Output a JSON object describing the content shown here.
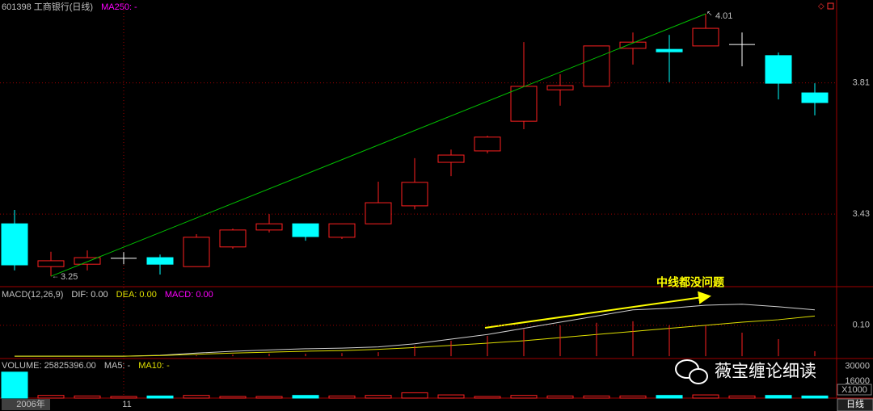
{
  "chart_data": [
    {
      "type": "candlestick",
      "title": "601398 工商银行(日线)",
      "indicator": "MA250: -",
      "indicator_color": "#ff00ff",
      "categories": [
        "2006年",
        null,
        null,
        "11",
        null,
        null,
        null,
        null,
        null,
        null,
        null,
        null,
        null,
        null,
        null,
        null,
        null,
        null,
        null,
        null,
        null,
        null,
        null
      ],
      "open": [
        3.402,
        3.278,
        3.285,
        3.302,
        3.304,
        3.278,
        3.335,
        3.384,
        3.402,
        3.363,
        3.402,
        3.454,
        3.58,
        3.613,
        3.699,
        3.79,
        3.8,
        3.91,
        3.907,
        3.917,
        3.921,
        3.889,
        3.781
      ],
      "high": [
        3.442,
        3.321,
        3.325,
        3.32,
        3.313,
        3.372,
        3.388,
        3.43,
        3.402,
        3.402,
        3.524,
        3.592,
        3.617,
        3.657,
        3.928,
        3.835,
        3.917,
        3.956,
        3.949,
        4.01,
        3.956,
        3.898,
        3.809
      ],
      "low": [
        3.267,
        3.25,
        3.267,
        3.285,
        3.255,
        3.278,
        3.33,
        3.377,
        3.353,
        3.358,
        3.402,
        3.444,
        3.54,
        3.606,
        3.676,
        3.744,
        3.8,
        3.863,
        3.812,
        3.917,
        3.858,
        3.762,
        3.716
      ],
      "close": [
        3.283,
        3.295,
        3.304,
        3.302,
        3.285,
        3.363,
        3.384,
        3.402,
        3.365,
        3.402,
        3.463,
        3.522,
        3.601,
        3.653,
        3.8,
        3.802,
        3.917,
        3.928,
        3.9,
        3.968,
        3.921,
        3.809,
        3.753
      ],
      "up_color": "#ff2020",
      "down_color": "#00ffff",
      "doji_color": "#ffffff",
      "trendline_color": "#00c000",
      "ylim": [
        3.22,
        4.05
      ],
      "yticks": [
        3.43,
        3.81
      ],
      "grid": true
    },
    {
      "type": "macd",
      "title": "MACD(12,26,9)",
      "series": [
        {
          "name": "DIF: 0.00",
          "color": "#d0d0d0",
          "values": [
            0,
            0,
            0,
            0,
            0.003,
            0.01,
            0.016,
            0.02,
            0.024,
            0.026,
            0.03,
            0.04,
            0.055,
            0.07,
            0.09,
            0.11,
            0.13,
            0.15,
            0.155,
            0.165,
            0.168,
            0.16,
            0.15
          ]
        },
        {
          "name": "DEA: 0.00",
          "color": "#e0e000",
          "values": [
            0,
            0,
            0,
            0,
            0.002,
            0.006,
            0.01,
            0.013,
            0.016,
            0.018,
            0.022,
            0.028,
            0.035,
            0.042,
            0.05,
            0.06,
            0.07,
            0.08,
            0.09,
            0.1,
            0.11,
            0.118,
            0.13
          ]
        },
        {
          "name": "MACD: 0.00",
          "color": "#ff00ff",
          "bar_color": "#ff2020",
          "values": [
            0,
            0,
            0,
            0,
            0,
            0.003,
            0.005,
            0.008,
            0.008,
            0.01,
            0.013,
            0.034,
            0.05,
            0.066,
            0.087,
            0.1,
            0.108,
            0.113,
            0.1,
            0.1,
            0.076,
            0.055,
            0.016
          ]
        }
      ],
      "annotation": "中线都没问题",
      "annotation_color": "#ffff00",
      "ylim": [
        -0.005,
        0.225
      ],
      "yticks": [
        {
          "value": 0.1,
          "label": "0.10"
        }
      ],
      "grid": true
    },
    {
      "type": "volume",
      "title": "VOLUME: 25825396.00",
      "ma5": "MA5: -",
      "ma10": "MA10: -",
      "ma10_color": "#e0e000",
      "values": [
        24500,
        2500,
        2000,
        1500,
        2000,
        2500,
        1500,
        1500,
        2500,
        2000,
        2500,
        5000,
        3000,
        1500,
        2500,
        2000,
        2000,
        2000,
        2500,
        3000,
        2000,
        2500,
        2000
      ],
      "unit": "X1000",
      "ylim": [
        0,
        32000
      ],
      "yticks": [
        16000,
        30000
      ]
    }
  ],
  "period": "日线",
  "watermark": "薇宝缠论细读"
}
